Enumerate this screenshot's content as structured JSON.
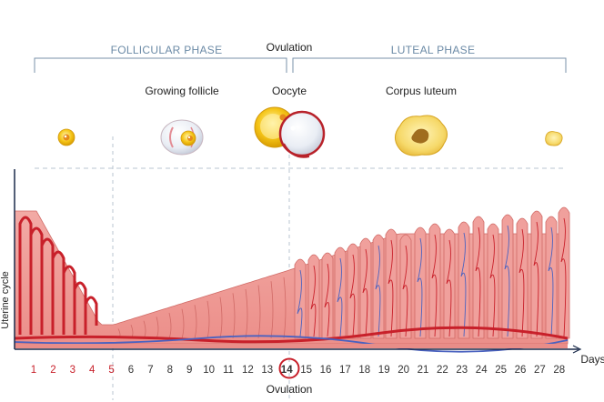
{
  "phases": {
    "follicular": "FOLLICULAR PHASE",
    "ovulation_top": "Ovulation",
    "luteal": "LUTEAL PHASE"
  },
  "stages": {
    "growing_follicle": "Growing follicle",
    "oocyte": "Oocyte",
    "corpus_luteum": "Corpus luteum"
  },
  "axis": {
    "y_label": "Uterine cycle",
    "x_label": "Days",
    "bottom_label": "Ovulation"
  },
  "days": [
    "1",
    "2",
    "3",
    "4",
    "5",
    "6",
    "7",
    "8",
    "9",
    "10",
    "11",
    "12",
    "13",
    "14",
    "15",
    "16",
    "17",
    "18",
    "19",
    "20",
    "21",
    "22",
    "23",
    "24",
    "25",
    "26",
    "27",
    "28"
  ],
  "menstrual_days": 5,
  "ovulation_day": 14,
  "colors": {
    "endometrium": "#f0a09c",
    "endometrium_edge": "#d06a66",
    "artery": "#c8202a",
    "vein": "#4a62c0",
    "phase_text": "#6b8aa6",
    "menstrual_text": "#c8202a",
    "guide_line": "#b8c4d0",
    "follicle_yellow": "#f5c518",
    "corpus_luteum": "#f6d96a"
  }
}
